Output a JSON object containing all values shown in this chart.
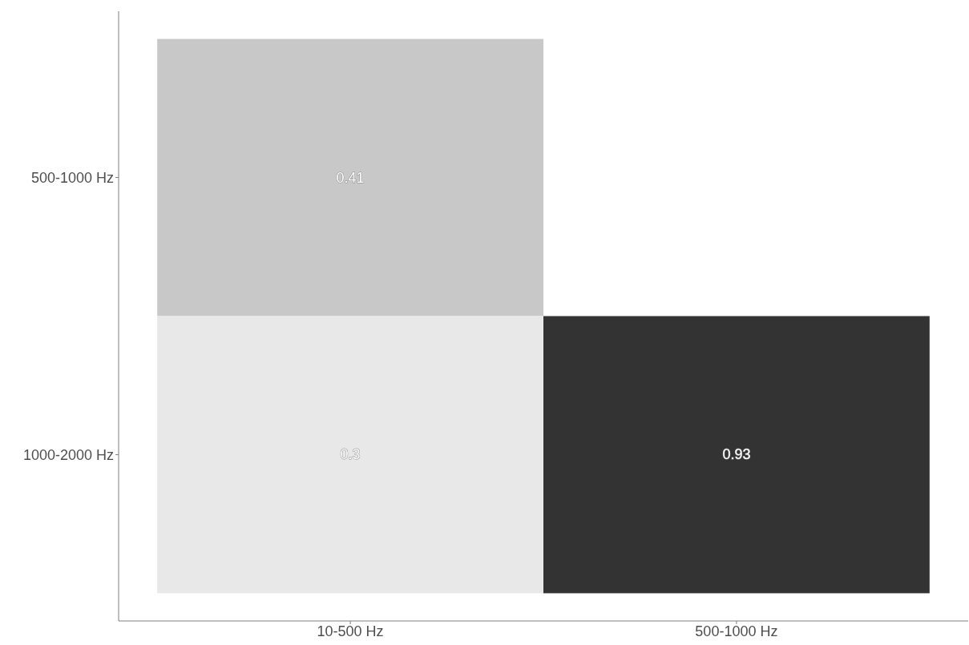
{
  "chart_data": {
    "type": "heatmap",
    "categories": [
      "10-500 Hz",
      "500-1000 Hz"
    ],
    "y_categories": [
      "500-1000 Hz",
      "1000-2000 Hz"
    ],
    "cells": [
      [
        0.41,
        null
      ],
      [
        0.3,
        0.93
      ]
    ],
    "data_labels": true
  }
}
